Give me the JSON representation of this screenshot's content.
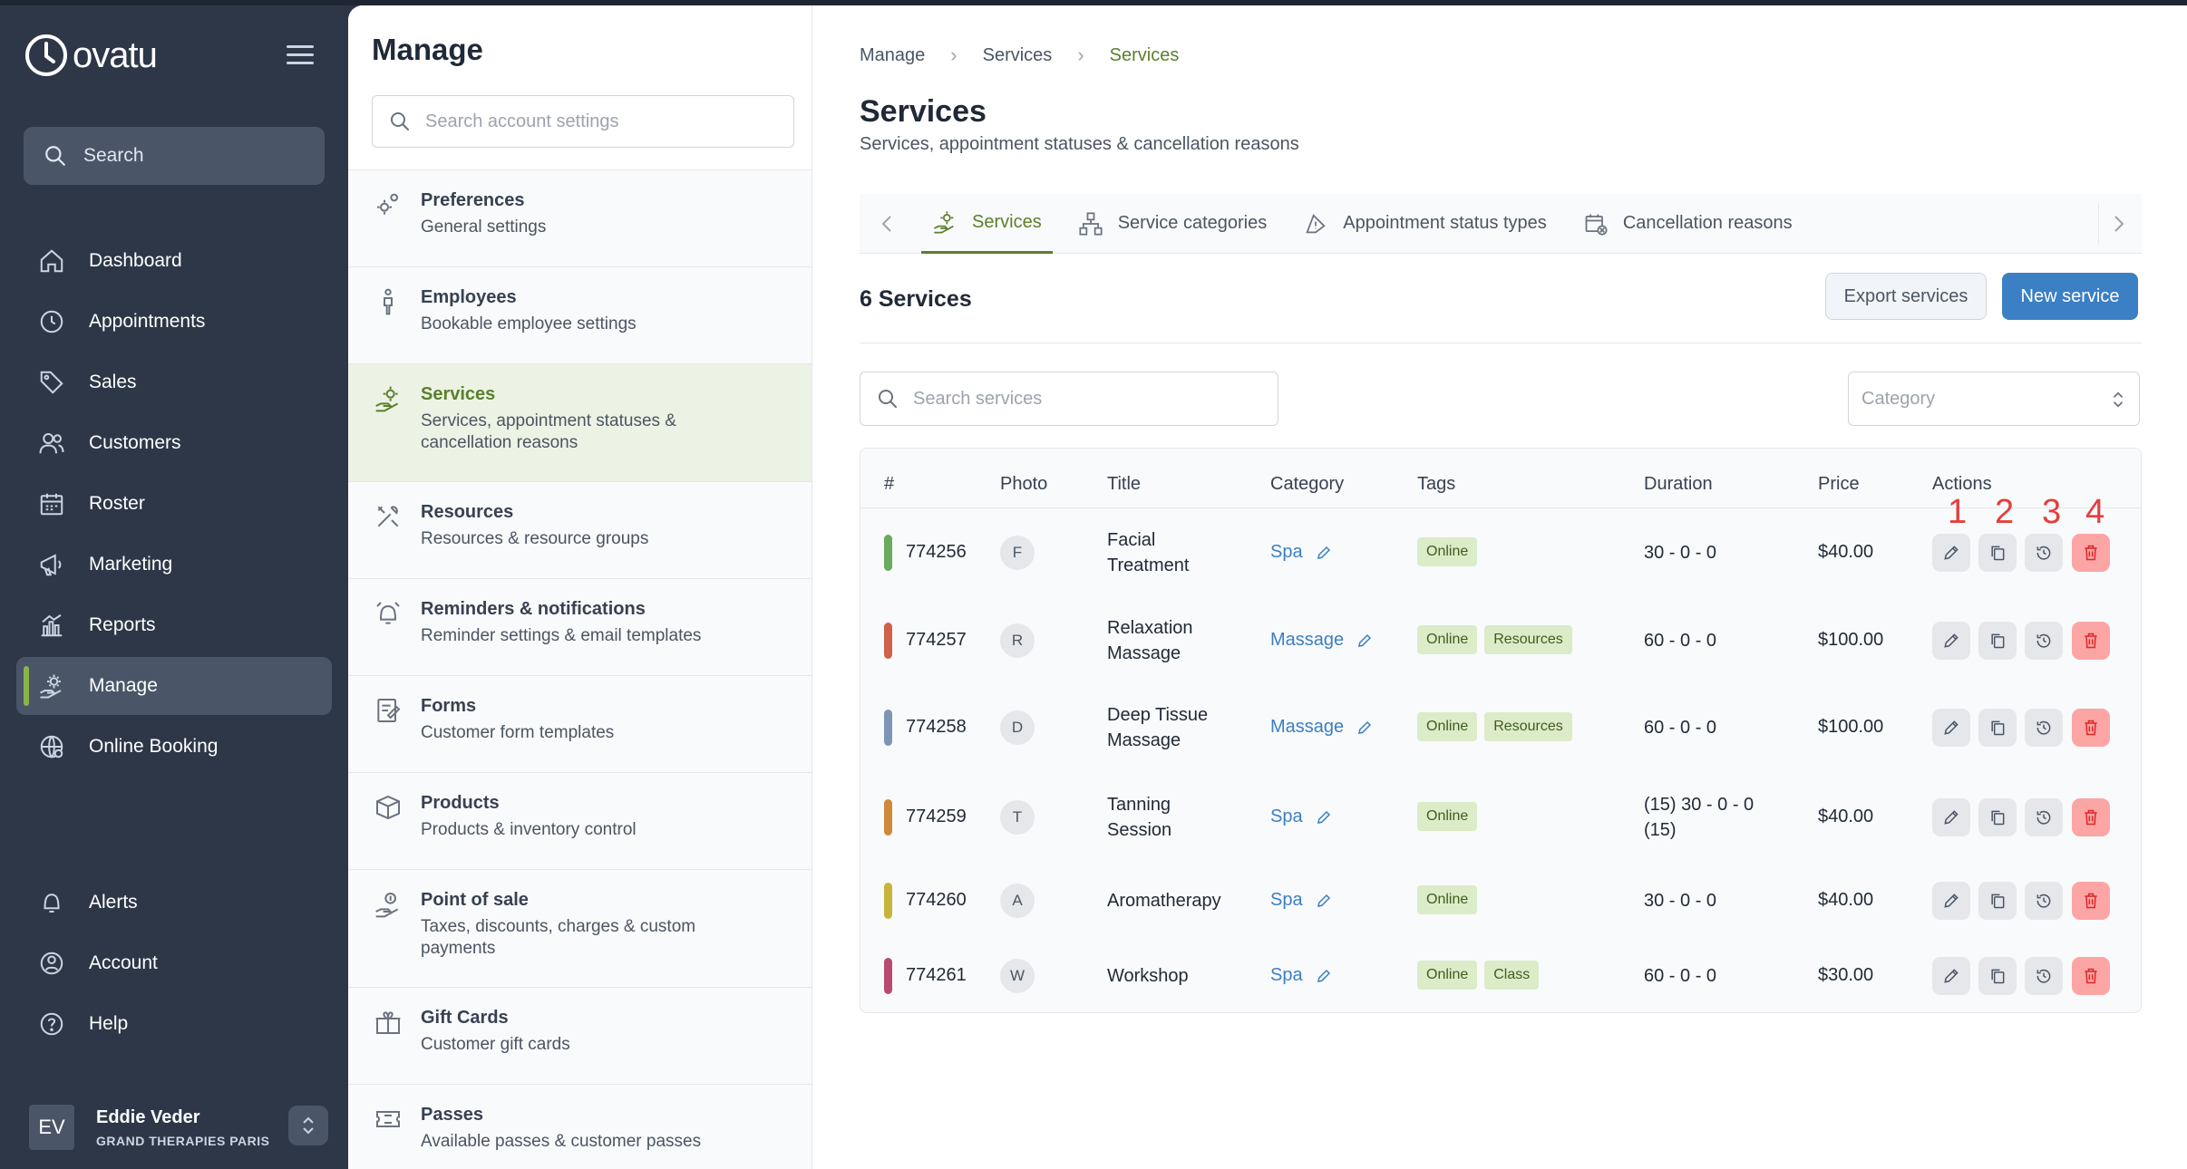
{
  "sidebar": {
    "brand": "ovatu",
    "search_label": "Search",
    "nav": [
      {
        "label": "Dashboard",
        "icon": "home-icon"
      },
      {
        "label": "Appointments",
        "icon": "clock-icon"
      },
      {
        "label": "Sales",
        "icon": "tag-icon"
      },
      {
        "label": "Customers",
        "icon": "users-icon"
      },
      {
        "label": "Roster",
        "icon": "calendar-icon"
      },
      {
        "label": "Marketing",
        "icon": "megaphone-icon"
      },
      {
        "label": "Reports",
        "icon": "chart-icon"
      },
      {
        "label": "Manage",
        "icon": "gear-hand-icon",
        "active": true
      },
      {
        "label": "Online Booking",
        "icon": "globe-icon"
      }
    ],
    "bottom": [
      {
        "label": "Alerts",
        "icon": "bell-icon"
      },
      {
        "label": "Account",
        "icon": "account-icon"
      },
      {
        "label": "Help",
        "icon": "help-icon"
      }
    ],
    "user": {
      "initials": "EV",
      "name": "Eddie Veder",
      "org": "GRAND THERAPIES PARIS"
    }
  },
  "settings": {
    "title": "Manage",
    "search_placeholder": "Search account settings",
    "items": [
      {
        "title": "Preferences",
        "sub": "General settings"
      },
      {
        "title": "Employees",
        "sub": "Bookable employee settings"
      },
      {
        "title": "Services",
        "sub": "Services, appointment statuses & cancellation reasons",
        "active": true
      },
      {
        "title": "Resources",
        "sub": "Resources & resource groups"
      },
      {
        "title": "Reminders & notifications",
        "sub": "Reminder settings & email templates"
      },
      {
        "title": "Forms",
        "sub": "Customer form templates"
      },
      {
        "title": "Products",
        "sub": "Products & inventory control"
      },
      {
        "title": "Point of sale",
        "sub": "Taxes, discounts, charges & custom payments"
      },
      {
        "title": "Gift Cards",
        "sub": "Customer gift cards"
      },
      {
        "title": "Passes",
        "sub": "Available passes & customer passes"
      }
    ]
  },
  "main": {
    "breadcrumb": [
      "Manage",
      "Services",
      "Services"
    ],
    "title": "Services",
    "subtitle": "Services, appointment statuses & cancellation reasons",
    "tabs": [
      {
        "label": "Services",
        "active": true
      },
      {
        "label": "Service categories"
      },
      {
        "label": "Appointment status types"
      },
      {
        "label": "Cancellation reasons"
      }
    ],
    "count_label": "6 Services",
    "export_label": "Export services",
    "new_label": "New service",
    "search_placeholder": "Search services",
    "category_placeholder": "Category",
    "columns": [
      "#",
      "Photo",
      "Title",
      "Category",
      "Tags",
      "Duration",
      "Price",
      "Actions"
    ],
    "action_numbers": [
      "1",
      "2",
      "3",
      "4"
    ],
    "rows": [
      {
        "id": "774256",
        "color": "#6aab5f",
        "initial": "F",
        "title": [
          "Facial",
          "Treatment"
        ],
        "category": "Spa",
        "tags": [
          "Online"
        ],
        "duration": [
          "30 - 0 - 0"
        ],
        "price": "$40.00"
      },
      {
        "id": "774257",
        "color": "#d0614a",
        "initial": "R",
        "title": [
          "Relaxation",
          "Massage"
        ],
        "category": "Massage",
        "tags": [
          "Online",
          "Resources"
        ],
        "duration": [
          "60 - 0 - 0"
        ],
        "price": "$100.00"
      },
      {
        "id": "774258",
        "color": "#7f95b5",
        "initial": "D",
        "title": [
          "Deep Tissue",
          "Massage"
        ],
        "category": "Massage",
        "tags": [
          "Online",
          "Resources"
        ],
        "duration": [
          "60 - 0 - 0"
        ],
        "price": "$100.00"
      },
      {
        "id": "774259",
        "color": "#d0883a",
        "initial": "T",
        "title": [
          "Tanning",
          "Session"
        ],
        "category": "Spa",
        "tags": [
          "Online"
        ],
        "duration": [
          "(15) 30 - 0 - 0",
          "(15)"
        ],
        "price": "$40.00"
      },
      {
        "id": "774260",
        "color": "#c7b53a",
        "initial": "A",
        "title": [
          "Aromatherapy"
        ],
        "category": "Spa",
        "tags": [
          "Online"
        ],
        "duration": [
          "30 - 0 - 0"
        ],
        "price": "$40.00"
      },
      {
        "id": "774261",
        "color": "#b84a72",
        "initial": "W",
        "title": [
          "Workshop"
        ],
        "category": "Spa",
        "tags": [
          "Online",
          "Class"
        ],
        "duration": [
          "60 - 0 - 0"
        ],
        "price": "$30.00"
      }
    ]
  }
}
